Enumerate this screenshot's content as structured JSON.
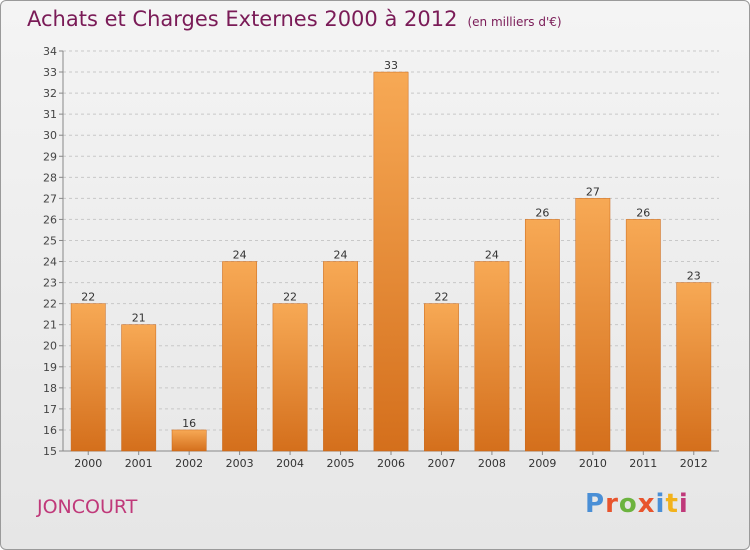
{
  "title": "Achats et Charges Externes 2000 à 2012",
  "title_unit": "(en milliers d'€)",
  "commune": "JONCOURT",
  "brand": {
    "text": "Proxiti",
    "colors": [
      "#4a8fd6",
      "#e8542d",
      "#6cb33f",
      "#e8542d",
      "#4a8fd6",
      "#f2b21b",
      "#c0397a"
    ]
  },
  "colors": {
    "bar_top": "#f7a955",
    "bar_bottom": "#d46f1c",
    "title": "#7a1b57",
    "commune": "#c0397a"
  },
  "chart_data": {
    "type": "bar",
    "categories": [
      "2000",
      "2001",
      "2002",
      "2003",
      "2004",
      "2005",
      "2006",
      "2007",
      "2008",
      "2009",
      "2010",
      "2011",
      "2012"
    ],
    "values": [
      22,
      21,
      16,
      24,
      22,
      24,
      33,
      22,
      24,
      26,
      27,
      26,
      23
    ],
    "ylim": [
      15,
      34
    ],
    "yticks": [
      15,
      16,
      17,
      18,
      19,
      20,
      21,
      22,
      23,
      24,
      25,
      26,
      27,
      28,
      29,
      30,
      31,
      32,
      33,
      34
    ],
    "grid": true,
    "xlabel": "",
    "ylabel": ""
  }
}
